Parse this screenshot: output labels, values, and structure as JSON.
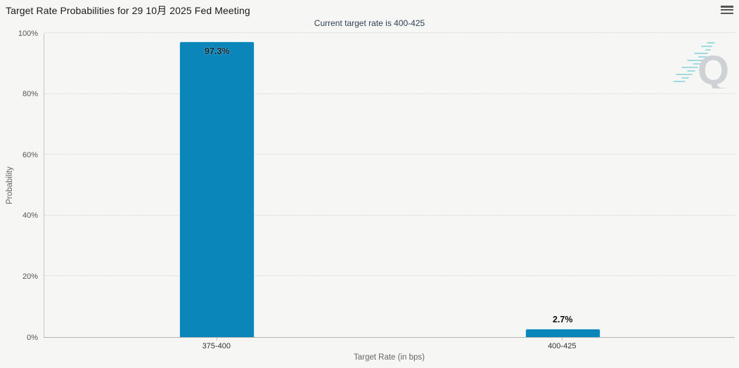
{
  "header": {
    "title": "Target Rate Probabilities for 29 10月 2025 Fed Meeting",
    "subtitle": "Current target rate is 400-425"
  },
  "menu": {
    "icon": "hamburger-menu-icon"
  },
  "watermark": {
    "letter": "Q",
    "style": "quikstrike-logo-with-teal-speed-lines"
  },
  "chart_data": {
    "type": "bar",
    "title": "Target Rate Probabilities for 29 10月 2025 Fed Meeting",
    "subtitle": "Current target rate is 400-425",
    "categories": [
      "375-400",
      "400-425"
    ],
    "values": [
      97.3,
      2.7
    ],
    "value_labels": [
      "97.3%",
      "2.7%"
    ],
    "xlabel": "Target Rate (in bps)",
    "ylabel": "Probability",
    "ylim": [
      0,
      100
    ],
    "yticks": [
      0,
      20,
      40,
      60,
      80,
      100
    ],
    "ytick_labels": [
      "0%",
      "20%",
      "40%",
      "60%",
      "80%",
      "100%"
    ],
    "grid": "dotted-horizontal",
    "legend": "none",
    "bar_color": "#0a86ba"
  },
  "colors": {
    "background": "#f6f6f4",
    "bar": "#0a86ba",
    "title_text": "#1a1a1a",
    "subtitle_text": "#2f4256",
    "axis_label_text": "#555555",
    "axis_title_text": "#666666",
    "gridline": "#d4d4d2",
    "axis_line": "#b4b4b2",
    "watermark_gray": "#ccd1d4",
    "watermark_teal": "#5ec6ce"
  }
}
